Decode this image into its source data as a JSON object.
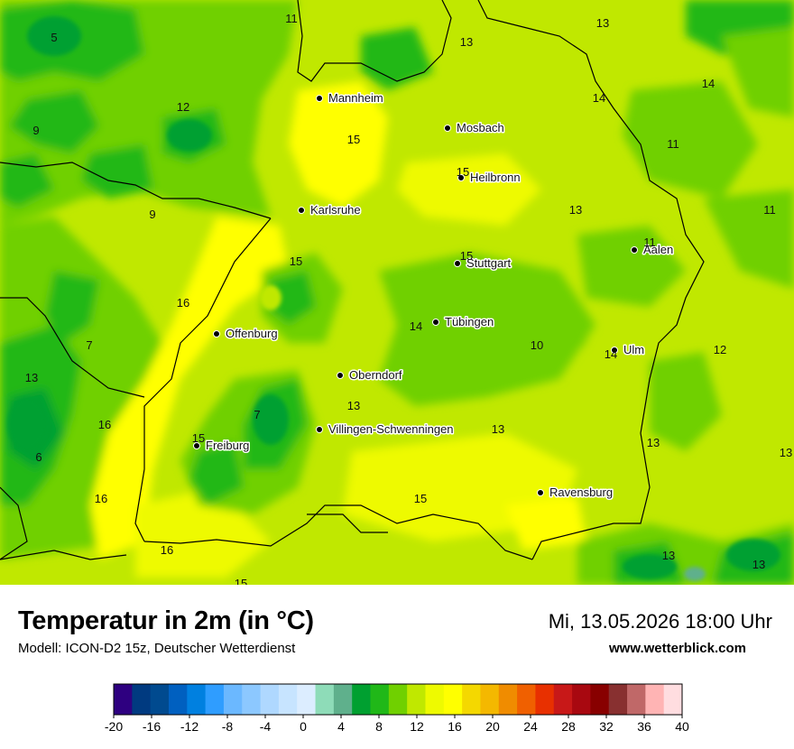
{
  "header": {
    "title": "Temperatur in 2m (in °C)",
    "model": "Modell: ICON-D2 15z, Deutscher Wetterdienst",
    "datetime": "Mi, 13.05.2026 18:00 Uhr",
    "website": "www.wetterblick.com"
  },
  "cities": [
    {
      "name": "Mannheim"
    },
    {
      "name": "Mosbach"
    },
    {
      "name": "Heilbronn"
    },
    {
      "name": "Karlsruhe"
    },
    {
      "name": "Aalen"
    },
    {
      "name": "Stuttgart"
    },
    {
      "name": "Tübingen"
    },
    {
      "name": "Offenburg"
    },
    {
      "name": "Ulm"
    },
    {
      "name": "Oberndorf"
    },
    {
      "name": "Villingen-Schwenningen"
    },
    {
      "name": "Freiburg"
    },
    {
      "name": "Ravensburg"
    }
  ],
  "temperature_labels": [
    "11",
    "13",
    "13",
    "5",
    "14",
    "14",
    "12",
    "15",
    "9",
    "11",
    "15",
    "9",
    "13",
    "11",
    "15",
    "11",
    "15",
    "16",
    "14",
    "7",
    "10",
    "14",
    "12",
    "13",
    "13",
    "16",
    "7",
    "13",
    "15",
    "13",
    "6",
    "16",
    "15",
    "16",
    "13",
    "13",
    "15"
  ],
  "color_scale": {
    "ticks": [
      "-20",
      "-16",
      "-12",
      "-8",
      "-4",
      "0",
      "4",
      "8",
      "12",
      "16",
      "20",
      "24",
      "28",
      "32",
      "36",
      "40"
    ],
    "colors": [
      "#2e0080",
      "#003a80",
      "#004a8f",
      "#0060c0",
      "#0080e0",
      "#2f9dff",
      "#6bb8ff",
      "#8cc8ff",
      "#afd8ff",
      "#c7e4ff",
      "#dcedff",
      "#8edcb8",
      "#5fb08c",
      "#00a030",
      "#20b818",
      "#70d000",
      "#c0e800",
      "#eefa00",
      "#ffff00",
      "#f4d800",
      "#f4b800",
      "#f08c00",
      "#f06000",
      "#e83000",
      "#c81818",
      "#a80810",
      "#880000",
      "#883030",
      "#c06868",
      "#ffb4b4",
      "#ffdde0"
    ]
  }
}
